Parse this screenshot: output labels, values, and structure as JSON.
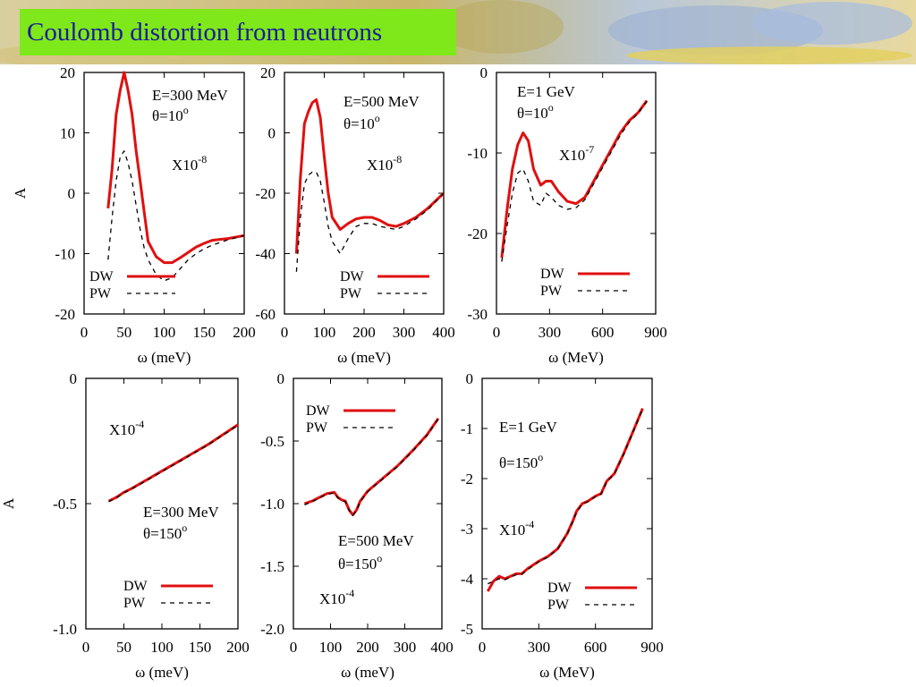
{
  "slide_title": "Coulomb distortion from neutrons",
  "colors": {
    "title_bg": "#7fe81a",
    "title_text": "#1b1b9a",
    "dw": "#e01010",
    "pw": "#000000"
  },
  "chart_data": [
    {
      "type": "line",
      "ylabel": "A",
      "xlabel": "ω (meV)",
      "xlim": [
        0,
        200
      ],
      "ylim": [
        -20,
        20
      ],
      "xticks": [
        "0",
        "50",
        "100",
        "150",
        "200"
      ],
      "yticks": [
        "20",
        "10",
        "0",
        "-10",
        "-20"
      ],
      "annotations": [
        "E=300 MeV",
        "θ=10",
        "X10"
      ],
      "theta_sup": "o",
      "scale_sup": "-8",
      "legend": [
        "DW",
        "PW"
      ],
      "series": [
        {
          "name": "DW",
          "x": [
            30,
            35,
            40,
            45,
            50,
            55,
            60,
            65,
            70,
            75,
            80,
            90,
            100,
            110,
            120,
            130,
            140,
            150,
            160,
            180,
            200
          ],
          "y": [
            -2.5,
            4,
            13,
            17,
            20,
            17,
            13,
            7,
            2,
            -3,
            -8,
            -10.5,
            -11.5,
            -11.5,
            -10.7,
            -9.8,
            -8.9,
            -8.3,
            -7.8,
            -7.5,
            -7
          ]
        },
        {
          "name": "PW",
          "x": [
            30,
            35,
            40,
            45,
            50,
            55,
            60,
            65,
            70,
            75,
            80,
            90,
            100,
            110,
            120,
            130,
            140,
            150,
            160,
            180,
            200
          ],
          "y": [
            -11,
            -4,
            2,
            6,
            7,
            5,
            2,
            -2,
            -6,
            -9,
            -11,
            -13.5,
            -14.5,
            -14,
            -12.5,
            -11,
            -10,
            -9.2,
            -8.6,
            -7.7,
            -7
          ]
        }
      ]
    },
    {
      "type": "line",
      "ylabel": "",
      "xlabel": "ω (meV)",
      "xlim": [
        0,
        400
      ],
      "ylim": [
        -60,
        20
      ],
      "xticks": [
        "0",
        "100",
        "200",
        "300",
        "400"
      ],
      "yticks": [
        "20",
        "0",
        "-20",
        "-40",
        "-60"
      ],
      "annotations": [
        "E=500 MeV",
        "θ=10",
        "X10"
      ],
      "theta_sup": "o",
      "scale_sup": "-8",
      "legend": [
        "DW",
        "PW"
      ],
      "series": [
        {
          "name": "DW",
          "x": [
            30,
            40,
            50,
            60,
            70,
            80,
            90,
            100,
            110,
            120,
            140,
            160,
            180,
            200,
            220,
            240,
            260,
            280,
            300,
            330,
            360,
            400
          ],
          "y": [
            -40,
            -15,
            3,
            7,
            10,
            11,
            5,
            -8,
            -20,
            -28,
            -32,
            -30,
            -28.5,
            -28,
            -28,
            -29,
            -30.5,
            -31,
            -30,
            -28,
            -25,
            -20
          ]
        },
        {
          "name": "PW",
          "x": [
            30,
            40,
            50,
            60,
            70,
            80,
            90,
            100,
            110,
            120,
            140,
            160,
            180,
            200,
            220,
            240,
            260,
            280,
            300,
            330,
            360,
            400
          ],
          "y": [
            -46,
            -28,
            -17,
            -14,
            -13,
            -13,
            -16,
            -23,
            -31,
            -36,
            -40,
            -35,
            -31,
            -30,
            -30,
            -31,
            -31.5,
            -32,
            -31,
            -28.5,
            -25.5,
            -20
          ]
        }
      ]
    },
    {
      "type": "line",
      "ylabel": "",
      "xlabel": "ω (MeV)",
      "xlim": [
        0,
        900
      ],
      "ylim": [
        -30,
        0
      ],
      "xticks": [
        "0",
        "300",
        "600",
        "900"
      ],
      "yticks": [
        "0",
        "-10",
        "-20",
        "-30"
      ],
      "annotations": [
        "E=1 GeV",
        "θ=10",
        "X10"
      ],
      "theta_sup": "o",
      "scale_sup": "-7",
      "legend": [
        "DW",
        "PW"
      ],
      "series": [
        {
          "name": "DW",
          "x": [
            30,
            60,
            90,
            120,
            150,
            180,
            210,
            250,
            280,
            310,
            350,
            400,
            450,
            500,
            550,
            600,
            650,
            700,
            750,
            800,
            850
          ],
          "y": [
            -23,
            -17,
            -12,
            -9,
            -7.5,
            -8.5,
            -12,
            -14,
            -13.5,
            -13.5,
            -14.8,
            -16,
            -16.3,
            -15.5,
            -13.5,
            -11.5,
            -9.5,
            -7.5,
            -6,
            -5,
            -3.5
          ]
        },
        {
          "name": "PW",
          "x": [
            30,
            60,
            90,
            120,
            150,
            180,
            210,
            250,
            280,
            310,
            350,
            400,
            450,
            500,
            550,
            600,
            650,
            700,
            750,
            800,
            850
          ],
          "y": [
            -23.5,
            -19,
            -15,
            -12.5,
            -12,
            -13.5,
            -16,
            -16.5,
            -15,
            -15.5,
            -16.5,
            -17,
            -16.8,
            -15.8,
            -13.8,
            -11.8,
            -9.8,
            -7.8,
            -6.2,
            -5.1,
            -3.6
          ]
        }
      ]
    },
    {
      "type": "line",
      "ylabel": "A",
      "xlabel": "ω (meV)",
      "xlim": [
        0,
        200
      ],
      "ylim": [
        -1.0,
        0
      ],
      "xticks": [
        "0",
        "50",
        "100",
        "150",
        "200"
      ],
      "yticks": [
        "0",
        "-0.5",
        "-1.0"
      ],
      "annotations": [
        "E=300 MeV",
        "θ=150",
        "X10"
      ],
      "theta_sup": "o",
      "scale_sup": "-4",
      "legend": [
        "DW",
        "PW"
      ],
      "series": [
        {
          "name": "DW",
          "x": [
            30,
            40,
            50,
            60,
            80,
            100,
            120,
            140,
            160,
            180,
            200
          ],
          "y": [
            -0.49,
            -0.475,
            -0.455,
            -0.44,
            -0.405,
            -0.37,
            -0.335,
            -0.3,
            -0.265,
            -0.225,
            -0.185
          ]
        },
        {
          "name": "PW",
          "x": [
            30,
            40,
            50,
            60,
            80,
            100,
            120,
            140,
            160,
            180,
            200
          ],
          "y": [
            -0.492,
            -0.477,
            -0.457,
            -0.442,
            -0.407,
            -0.372,
            -0.337,
            -0.302,
            -0.267,
            -0.227,
            -0.187
          ]
        }
      ]
    },
    {
      "type": "line",
      "ylabel": "",
      "xlabel": "ω (meV)",
      "xlim": [
        0,
        400
      ],
      "ylim": [
        -2.0,
        0
      ],
      "xticks": [
        "0",
        "100",
        "200",
        "300",
        "400"
      ],
      "yticks": [
        "0",
        "-0.5",
        "-1.0",
        "-1.5",
        "-2.0"
      ],
      "annotations": [
        "E=500 MeV",
        "θ=150",
        "X10"
      ],
      "theta_sup": "o",
      "scale_sup": "-4",
      "legend": [
        "DW",
        "PW"
      ],
      "series": [
        {
          "name": "DW",
          "x": [
            30,
            50,
            70,
            90,
            110,
            120,
            130,
            140,
            150,
            160,
            170,
            180,
            200,
            240,
            280,
            320,
            360,
            390
          ],
          "y": [
            -1.0,
            -0.98,
            -0.95,
            -0.92,
            -0.91,
            -0.95,
            -0.97,
            -0.98,
            -1.05,
            -1.09,
            -1.05,
            -0.98,
            -0.9,
            -0.8,
            -0.7,
            -0.58,
            -0.45,
            -0.32
          ]
        },
        {
          "name": "PW",
          "x": [
            30,
            50,
            70,
            90,
            110,
            120,
            130,
            140,
            150,
            160,
            170,
            180,
            200,
            240,
            280,
            320,
            360,
            390
          ],
          "y": [
            -1.01,
            -0.985,
            -0.955,
            -0.925,
            -0.915,
            -0.955,
            -0.975,
            -0.985,
            -1.055,
            -1.095,
            -1.055,
            -0.985,
            -0.905,
            -0.805,
            -0.705,
            -0.585,
            -0.455,
            -0.325
          ]
        }
      ]
    },
    {
      "type": "line",
      "ylabel": "",
      "xlabel": "ω (MeV)",
      "xlim": [
        0,
        900
      ],
      "ylim": [
        -5,
        0
      ],
      "xticks": [
        "0",
        "300",
        "600",
        "900"
      ],
      "yticks": [
        "0",
        "-1",
        "-2",
        "-3",
        "-4",
        "-5"
      ],
      "annotations": [
        "E=1 GeV",
        "θ=150",
        "X10"
      ],
      "theta_sup": "o",
      "scale_sup": "-4",
      "legend": [
        "DW",
        "PW"
      ],
      "series": [
        {
          "name": "DW",
          "x": [
            30,
            60,
            90,
            120,
            150,
            180,
            210,
            240,
            300,
            350,
            400,
            450,
            480,
            500,
            530,
            560,
            600,
            630,
            660,
            700,
            750,
            800,
            850
          ],
          "y": [
            -4.25,
            -4.05,
            -3.95,
            -4.0,
            -3.95,
            -3.9,
            -3.9,
            -3.8,
            -3.65,
            -3.55,
            -3.4,
            -3.1,
            -2.85,
            -2.65,
            -2.5,
            -2.45,
            -2.35,
            -2.3,
            -2.05,
            -1.9,
            -1.5,
            -1.05,
            -0.6
          ]
        },
        {
          "name": "PW",
          "x": [
            30,
            60,
            90,
            120,
            150,
            180,
            210,
            240,
            300,
            350,
            400,
            450,
            480,
            500,
            530,
            560,
            600,
            630,
            660,
            700,
            750,
            800,
            850
          ],
          "y": [
            -4.1,
            -4.05,
            -4.0,
            -4.02,
            -3.97,
            -3.92,
            -3.91,
            -3.82,
            -3.66,
            -3.56,
            -3.41,
            -3.11,
            -2.86,
            -2.66,
            -2.51,
            -2.46,
            -2.36,
            -2.31,
            -2.06,
            -1.91,
            -1.51,
            -1.06,
            -0.61
          ]
        }
      ]
    }
  ]
}
